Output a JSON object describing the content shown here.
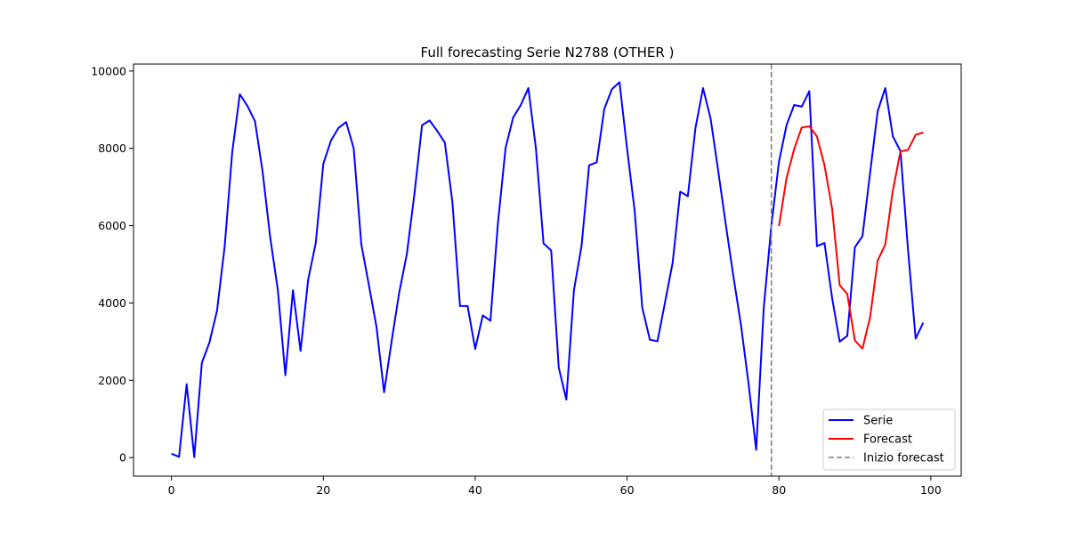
{
  "chart_data": {
    "type": "line",
    "title": "Full forecasting Serie N2788 (OTHER       )",
    "xlabel": "",
    "ylabel": "",
    "xlim": [
      -5,
      104
    ],
    "ylim": [
      -480,
      10180
    ],
    "x_ticks": [
      0,
      20,
      40,
      60,
      80,
      100
    ],
    "y_ticks": [
      0,
      2000,
      4000,
      6000,
      8000,
      10000
    ],
    "grid": false,
    "legend_position": "lower-right",
    "series": [
      {
        "name": "Serie",
        "color": "#0000ff",
        "style": "solid",
        "x": [
          0,
          1,
          2,
          3,
          4,
          5,
          6,
          7,
          8,
          9,
          10,
          11,
          12,
          13,
          14,
          15,
          16,
          17,
          18,
          19,
          20,
          21,
          22,
          23,
          24,
          25,
          26,
          27,
          28,
          29,
          30,
          31,
          32,
          33,
          34,
          35,
          36,
          37,
          38,
          39,
          40,
          41,
          42,
          43,
          44,
          45,
          46,
          47,
          48,
          49,
          50,
          51,
          52,
          53,
          54,
          55,
          56,
          57,
          58,
          59,
          60,
          61,
          62,
          63,
          64,
          65,
          66,
          67,
          68,
          69,
          70,
          71,
          72,
          73,
          74,
          75,
          76,
          77,
          78,
          79,
          80,
          81,
          82,
          83,
          84,
          85,
          86,
          87,
          88,
          89,
          90,
          91,
          92,
          93,
          94,
          95,
          96,
          97,
          98,
          99
        ],
        "values": [
          100,
          20,
          1900,
          10,
          2450,
          2980,
          3800,
          5450,
          7900,
          9400,
          9100,
          8700,
          7400,
          5700,
          4350,
          2130,
          4330,
          2760,
          4600,
          5550,
          7600,
          8200,
          8530,
          8680,
          8000,
          5520,
          4460,
          3380,
          1690,
          3020,
          4280,
          5270,
          6830,
          8600,
          8720,
          8450,
          8150,
          6600,
          3920,
          3920,
          2810,
          3680,
          3540,
          6080,
          8010,
          8800,
          9120,
          9560,
          7990,
          5540,
          5360,
          2330,
          1500,
          4330,
          5470,
          7560,
          7640,
          9020,
          9530,
          9710,
          7990,
          6380,
          3880,
          3050,
          3010,
          4020,
          5040,
          6880,
          6760,
          8520,
          9560,
          8770,
          7420,
          6030,
          4690,
          3430,
          1910,
          200,
          3880,
          6000,
          7650,
          8600,
          9120,
          9080,
          9480,
          5470,
          5550,
          4130,
          3000,
          3150,
          5440,
          5730,
          7360,
          8960,
          9560,
          8310,
          7930,
          5370,
          3080,
          3490
        ]
      },
      {
        "name": "Forecast",
        "color": "#ff0000",
        "style": "solid",
        "x": [
          80,
          81,
          82,
          83,
          84,
          85,
          86,
          87,
          88,
          89,
          90,
          91,
          92,
          93,
          94,
          95,
          96,
          97,
          98,
          99
        ],
        "values": [
          5990,
          7230,
          7980,
          8540,
          8570,
          8310,
          7560,
          6440,
          4460,
          4230,
          3030,
          2820,
          3630,
          5100,
          5510,
          6910,
          7920,
          7960,
          8350,
          8410
        ]
      },
      {
        "name": "Inizio forecast",
        "color": "#808080",
        "style": "dashed",
        "type": "vline",
        "x_value": 79
      }
    ]
  }
}
